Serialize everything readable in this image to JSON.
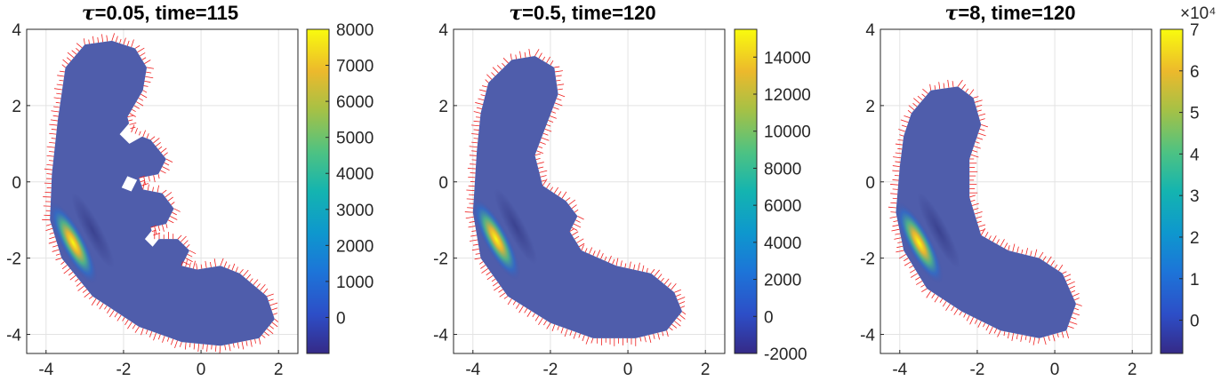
{
  "chart_data": [
    {
      "type": "heatmap",
      "title_symbol": "τ",
      "title_rest": "=0.05, time=115",
      "xlim": [
        -4.5,
        2.5
      ],
      "ylim": [
        -4.5,
        4
      ],
      "xticks": [
        -4,
        -2,
        0,
        2
      ],
      "xtick_labels": [
        "-4",
        "-2",
        "0",
        "2"
      ],
      "yticks": [
        -4,
        -2,
        0,
        2,
        4
      ],
      "ytick_labels": [
        "-4",
        "-2",
        "0",
        "2",
        "4"
      ],
      "grid": true,
      "colorbar": {
        "min": -1000,
        "max": 8000,
        "ticks": [
          0,
          1000,
          2000,
          3000,
          4000,
          5000,
          6000,
          7000,
          8000
        ],
        "tick_labels": [
          "0",
          "1000",
          "2000",
          "3000",
          "4000",
          "5000",
          "6000",
          "7000",
          "8000"
        ],
        "exponent": ""
      },
      "shape": [
        [
          -3.5,
          3
        ],
        [
          -3,
          3.6
        ],
        [
          -2.3,
          3.7
        ],
        [
          -1.7,
          3.5
        ],
        [
          -1.4,
          3
        ],
        [
          -1.5,
          2.4
        ],
        [
          -1.9,
          1.7
        ],
        [
          -1.8,
          1.3
        ],
        [
          -1.3,
          1.1
        ],
        [
          -0.9,
          0.6
        ],
        [
          -1.1,
          0.2
        ],
        [
          -1.6,
          0.1
        ],
        [
          -1.5,
          -0.2
        ],
        [
          -1.0,
          -0.3
        ],
        [
          -0.7,
          -0.7
        ],
        [
          -0.9,
          -1.1
        ],
        [
          -1.3,
          -1.2
        ],
        [
          -1.2,
          -1.5
        ],
        [
          -0.6,
          -1.5
        ],
        [
          -0.3,
          -1.8
        ],
        [
          -0.5,
          -2.2
        ],
        [
          -0.1,
          -2.3
        ],
        [
          0.5,
          -2.2
        ],
        [
          1.0,
          -2.4
        ],
        [
          1.7,
          -3.0
        ],
        [
          1.9,
          -3.6
        ],
        [
          1.5,
          -4.1
        ],
        [
          0.5,
          -4.3
        ],
        [
          -0.5,
          -4.2
        ],
        [
          -1.6,
          -3.8
        ],
        [
          -2.8,
          -3.0
        ],
        [
          -3.6,
          -2.0
        ],
        [
          -3.9,
          -1.0
        ],
        [
          -3.85,
          0.2
        ],
        [
          -3.7,
          1.6
        ]
      ],
      "holes": [
        [
          [
            -2.1,
            1.25
          ],
          [
            -1.8,
            1.6
          ],
          [
            -1.5,
            1.2
          ],
          [
            -1.85,
            1.0
          ]
        ],
        [
          [
            -2.05,
            -0.15
          ],
          [
            -1.9,
            0.15
          ],
          [
            -1.65,
            0.05
          ],
          [
            -1.8,
            -0.25
          ]
        ],
        [
          [
            -1.45,
            -1.5
          ],
          [
            -1.25,
            -1.25
          ],
          [
            -1.05,
            -1.45
          ],
          [
            -1.25,
            -1.7
          ]
        ]
      ],
      "hotspot": {
        "x": -3.3,
        "y": -1.6
      }
    },
    {
      "type": "heatmap",
      "title_symbol": "τ",
      "title_rest": "=0.5, time=120",
      "xlim": [
        -4.5,
        2.5
      ],
      "ylim": [
        -4.5,
        4
      ],
      "xticks": [
        -4,
        -2,
        0,
        2
      ],
      "xtick_labels": [
        "-4",
        "-2",
        "0",
        "2"
      ],
      "yticks": [
        -4,
        -2,
        0,
        2,
        4
      ],
      "ytick_labels": [
        "-4",
        "-2",
        "0",
        "2",
        "4"
      ],
      "grid": true,
      "colorbar": {
        "min": -2000,
        "max": 15500,
        "ticks": [
          -2000,
          0,
          2000,
          4000,
          6000,
          8000,
          10000,
          12000,
          14000
        ],
        "tick_labels": [
          "-2000",
          "0",
          "2000",
          "4000",
          "6000",
          "8000",
          "10000",
          "12000",
          "14000"
        ],
        "exponent": ""
      },
      "shape": [
        [
          -3.6,
          2.6
        ],
        [
          -3.0,
          3.2
        ],
        [
          -2.4,
          3.3
        ],
        [
          -1.9,
          3.0
        ],
        [
          -1.8,
          2.3
        ],
        [
          -2.1,
          1.5
        ],
        [
          -2.4,
          0.7
        ],
        [
          -2.2,
          -0.1
        ],
        [
          -1.6,
          -0.5
        ],
        [
          -1.3,
          -0.9
        ],
        [
          -1.5,
          -1.3
        ],
        [
          -1.2,
          -1.8
        ],
        [
          -0.3,
          -2.2
        ],
        [
          0.6,
          -2.4
        ],
        [
          1.2,
          -2.9
        ],
        [
          1.4,
          -3.4
        ],
        [
          1.0,
          -3.9
        ],
        [
          0.2,
          -4.1
        ],
        [
          -0.9,
          -4.1
        ],
        [
          -2.0,
          -3.7
        ],
        [
          -3.1,
          -3.0
        ],
        [
          -3.8,
          -2.0
        ],
        [
          -4.0,
          -0.8
        ],
        [
          -3.9,
          0.8
        ],
        [
          -3.8,
          1.8
        ]
      ],
      "holes": [],
      "hotspot": {
        "x": -3.4,
        "y": -1.5
      }
    },
    {
      "type": "heatmap",
      "title_symbol": "τ",
      "title_rest": "=8, time=120",
      "xlim": [
        -4.5,
        2.5
      ],
      "ylim": [
        -4.5,
        4
      ],
      "xticks": [
        -4,
        -2,
        0,
        2
      ],
      "xtick_labels": [
        "-4",
        "-2",
        "0",
        "2"
      ],
      "yticks": [
        -4,
        -2,
        0,
        2,
        4
      ],
      "ytick_labels": [
        "-4",
        "-2",
        "0",
        "2",
        "4"
      ],
      "grid": true,
      "colorbar": {
        "min": -8000,
        "max": 70000,
        "ticks": [
          0,
          10000,
          20000,
          30000,
          40000,
          50000,
          60000,
          70000
        ],
        "tick_labels": [
          "0",
          "1",
          "2",
          "3",
          "4",
          "5",
          "6",
          "7"
        ],
        "exponent": "×10⁴"
      },
      "shape": [
        [
          -3.7,
          1.8
        ],
        [
          -3.2,
          2.4
        ],
        [
          -2.5,
          2.5
        ],
        [
          -2.1,
          2.2
        ],
        [
          -1.9,
          1.5
        ],
        [
          -2.2,
          0.6
        ],
        [
          -2.2,
          -0.4
        ],
        [
          -1.9,
          -1.4
        ],
        [
          -1.2,
          -1.8
        ],
        [
          -0.4,
          -2.0
        ],
        [
          0.2,
          -2.4
        ],
        [
          0.55,
          -3.2
        ],
        [
          0.3,
          -3.9
        ],
        [
          -0.4,
          -4.1
        ],
        [
          -1.4,
          -3.9
        ],
        [
          -2.4,
          -3.4
        ],
        [
          -3.3,
          -2.8
        ],
        [
          -3.9,
          -1.8
        ],
        [
          -4.1,
          -0.8
        ],
        [
          -4.0,
          0.4
        ],
        [
          -3.9,
          1.2
        ]
      ],
      "holes": [],
      "hotspot": {
        "x": -3.5,
        "y": -1.6
      }
    }
  ]
}
